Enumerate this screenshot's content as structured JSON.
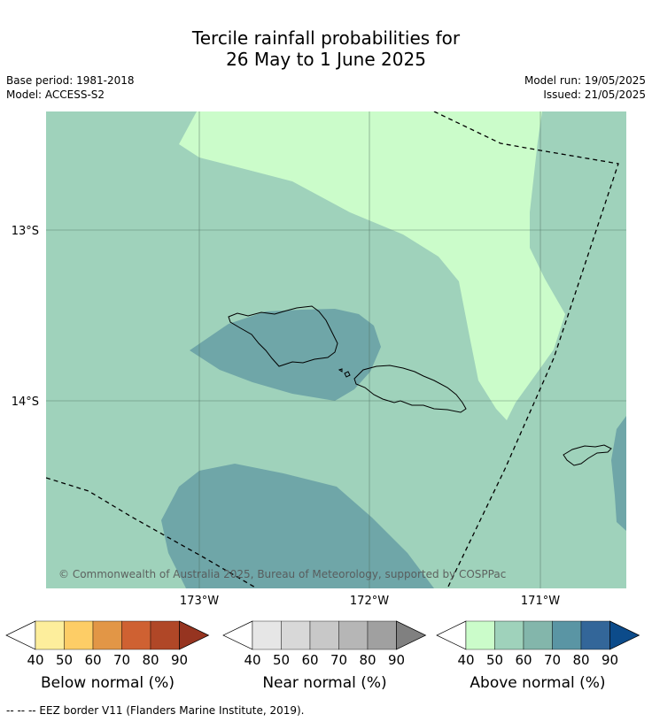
{
  "title_line1": "Tercile rainfall probabilities for",
  "title_line2": "26 May to 1 June 2025",
  "meta": {
    "base_period": "Base period: 1981-2018",
    "model": "Model: ACCESS-S2",
    "model_run": "Model run: 19/05/2025",
    "issued": "Issued: 21/05/2025"
  },
  "map": {
    "latitude_labels": [
      "13°S",
      "14°S"
    ],
    "longitude_labels": [
      "173°W",
      "172°W",
      "171°W"
    ],
    "copyright": "© Commonwealth of Australia 2025, Bureau of Meteorology, supported by COSPPac",
    "colors": {
      "above_50": "#9fd2bb",
      "above_40": "#cbfcca",
      "above_70": "#6fa6a8",
      "land_outline": "#000000"
    }
  },
  "colorbars": [
    {
      "label": "Below normal (%)",
      "ticks": [
        "40",
        "50",
        "60",
        "70",
        "80",
        "90"
      ],
      "colors": [
        "#fdee9c",
        "#fdcd66",
        "#e29646",
        "#cf6132",
        "#b04727",
        "#963420"
      ]
    },
    {
      "label": "Near normal (%)",
      "ticks": [
        "40",
        "50",
        "60",
        "70",
        "80",
        "90"
      ],
      "colors": [
        "#e6e6e6",
        "#d8d8d8",
        "#c8c8c8",
        "#b6b6b6",
        "#a0a0a0",
        "#808080"
      ]
    },
    {
      "label": "Above normal (%)",
      "ticks": [
        "40",
        "50",
        "60",
        "70",
        "80",
        "90"
      ],
      "colors": [
        "#cbfcca",
        "#9fd2bb",
        "#83b6ab",
        "#5a95a4",
        "#336699",
        "#0c4b8a"
      ]
    }
  ],
  "footer": "--  --  -- EEZ border V11 (Flanders Marine Institute, 2019)."
}
